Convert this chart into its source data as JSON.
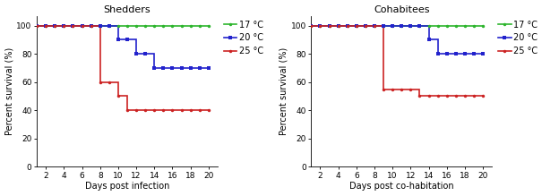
{
  "left_title": "Shedders",
  "right_title": "Cohabitees",
  "left_xlabel": "Days post infection",
  "right_xlabel": "Days post co-habitation",
  "ylabel": "Percent survival (%)",
  "ylim": [
    0,
    107
  ],
  "xlim": [
    1,
    21
  ],
  "xticks": [
    2,
    4,
    6,
    8,
    10,
    12,
    14,
    16,
    18,
    20
  ],
  "yticks": [
    0,
    20,
    40,
    60,
    80,
    100
  ],
  "colors": {
    "17C": "#2db52d",
    "20C": "#2222cc",
    "25C": "#cc2222"
  },
  "legend_labels": [
    "17 °C",
    "20 °C",
    "25 °C"
  ],
  "left": {
    "17C": {
      "x": [
        1,
        20
      ],
      "y": [
        100,
        100
      ]
    },
    "20C": {
      "x": [
        1,
        10,
        10,
        12,
        12,
        14,
        14,
        20
      ],
      "y": [
        100,
        100,
        90,
        90,
        80,
        80,
        70,
        70
      ]
    },
    "25C": {
      "x": [
        1,
        8,
        8,
        10,
        10,
        11,
        11,
        13,
        13,
        20
      ],
      "y": [
        100,
        100,
        60,
        60,
        50,
        50,
        40,
        40,
        40,
        40
      ]
    }
  },
  "right": {
    "17C": {
      "x": [
        1,
        20
      ],
      "y": [
        100,
        100
      ]
    },
    "20C": {
      "x": [
        1,
        14,
        14,
        15,
        15,
        20
      ],
      "y": [
        100,
        100,
        90,
        90,
        80,
        80
      ]
    },
    "25C": {
      "x": [
        1,
        9,
        9,
        13,
        13,
        14,
        14,
        20
      ],
      "y": [
        100,
        100,
        55,
        55,
        50,
        50,
        50,
        50
      ]
    }
  },
  "linewidth": 1.2,
  "markersize": 2.5,
  "title_fontsize": 8,
  "label_fontsize": 7,
  "tick_fontsize": 6.5,
  "legend_fontsize": 7
}
